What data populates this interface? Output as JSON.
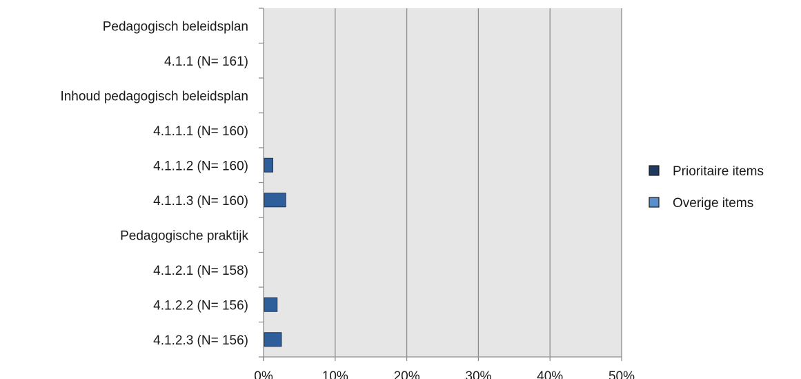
{
  "chart_data": {
    "type": "bar",
    "orientation": "horizontal",
    "categories": [
      "Pedagogisch beleidsplan",
      "4.1.1 (N= 161)",
      "Inhoud pedagogisch beleidsplan",
      "4.1.1.1 (N= 160)",
      "4.1.1.2 (N= 160)",
      "4.1.1.3 (N= 160)",
      "Pedagogische praktijk",
      "4.1.2.1 (N= 158)",
      "4.1.2.2 (N= 156)",
      "4.1.2.3 (N= 156)"
    ],
    "series": [
      {
        "name": "Prioritaire items",
        "color": "#1f3a5f",
        "values": [
          null,
          0,
          null,
          0,
          null,
          null,
          null,
          0,
          null,
          null
        ]
      },
      {
        "name": "Overige items",
        "color": "#2e5f9a",
        "values": [
          null,
          null,
          null,
          null,
          1.3,
          3.1,
          null,
          null,
          1.9,
          2.5
        ]
      }
    ],
    "xlim": [
      0,
      50
    ],
    "x_ticks": [
      "0%",
      "10%",
      "20%",
      "30%",
      "40%",
      "50%"
    ],
    "x_tick_values": [
      0,
      10,
      20,
      30,
      40,
      50
    ],
    "legend_position": "right",
    "grid": true,
    "plot_background": "#e6e6e6",
    "gridline_color": "#8c8c8c"
  }
}
